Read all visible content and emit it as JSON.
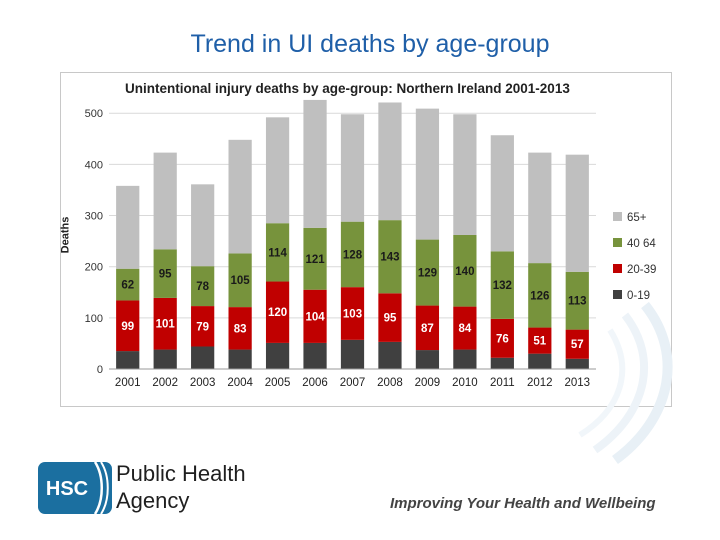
{
  "slide": {
    "title": "Trend in UI deaths by age-group",
    "org_line1": "Public Health",
    "org_line2": "Agency",
    "logo_text": "HSC",
    "tagline": "Improving Your Health and Wellbeing"
  },
  "colors": {
    "title": "#1f5fa8",
    "brand": "#1b6fa0"
  },
  "chart_data": {
    "type": "bar",
    "stacked": true,
    "title": "Unintentional injury deaths by age-group: Northern Ireland 2001-2013",
    "xlabel": "",
    "ylabel": "Deaths",
    "ylim": [
      0,
      520
    ],
    "yticks": [
      0,
      100,
      200,
      300,
      400,
      500
    ],
    "grid": true,
    "legend_position": "right",
    "categories": [
      "2001",
      "2002",
      "2003",
      "2004",
      "2005",
      "2006",
      "2007",
      "2008",
      "2009",
      "2010",
      "2011",
      "2012",
      "2013"
    ],
    "series": [
      {
        "name": "0-19",
        "color": "#404040",
        "values": [
          35,
          38,
          44,
          38,
          51,
          51,
          57,
          53,
          37,
          38,
          22,
          30,
          20
        ],
        "labels": [
          "",
          "",
          "",
          "",
          "",
          "",
          "",
          "",
          "",
          "",
          "",
          "",
          ""
        ]
      },
      {
        "name": "20-39",
        "color": "#c00000",
        "values": [
          99,
          101,
          79,
          83,
          120,
          104,
          103,
          95,
          87,
          84,
          76,
          51,
          57
        ],
        "labels": [
          "99",
          "101",
          "79",
          "83",
          "120",
          "104",
          "103",
          "95",
          "87",
          "84",
          "76",
          "51",
          "57"
        ]
      },
      {
        "name": "40 64",
        "color": "#77933c",
        "values": [
          62,
          95,
          78,
          105,
          114,
          121,
          128,
          143,
          129,
          140,
          132,
          126,
          113
        ],
        "labels": [
          "62",
          "95",
          "78",
          "105",
          "114",
          "121",
          "128",
          "143",
          "129",
          "140",
          "132",
          "126",
          "113"
        ]
      },
      {
        "name": "65+",
        "color": "#bfbfbf",
        "values": [
          162,
          189,
          160,
          222,
          207,
          250,
          210,
          230,
          256,
          236,
          227,
          216,
          229
        ],
        "labels": [
          "",
          "",
          "",
          "",
          "",
          "",
          "",
          "",
          "",
          "",
          "",
          "",
          ""
        ]
      }
    ]
  }
}
